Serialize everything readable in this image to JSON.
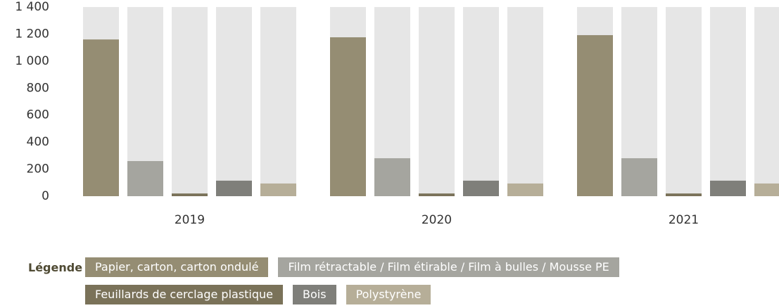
{
  "chart_data": {
    "type": "bar",
    "categories": [
      "2019",
      "2020",
      "2021"
    ],
    "series": [
      {
        "name": "Papier, carton, carton ondulé",
        "color": "#958d73",
        "values": [
          1160,
          1176,
          1192
        ]
      },
      {
        "name": "Film rétractable / Film étirable / Film à bulles / Mousse PE",
        "color": "#a5a59f",
        "values": [
          260,
          281,
          281
        ]
      },
      {
        "name": "Feuillards de cerclage plastique",
        "color": "#7a7259",
        "values": [
          20,
          20,
          20
        ]
      },
      {
        "name": "Bois",
        "color": "#7f7f7a",
        "values": [
          115,
          115,
          115
        ]
      },
      {
        "name": "Polystyrène",
        "color": "#b6ae98",
        "values": [
          94,
          94,
          94
        ]
      }
    ],
    "ylim": [
      0,
      1400
    ],
    "yticks": [
      0,
      200,
      400,
      600,
      800,
      {
        "value": 1000,
        "label": "1 000"
      },
      {
        "value": 1200,
        "label": "1 200"
      },
      {
        "value": 1400,
        "label": "1 400"
      }
    ],
    "background_bar_color": "#e6e6e6",
    "legend_title": "Légende"
  }
}
